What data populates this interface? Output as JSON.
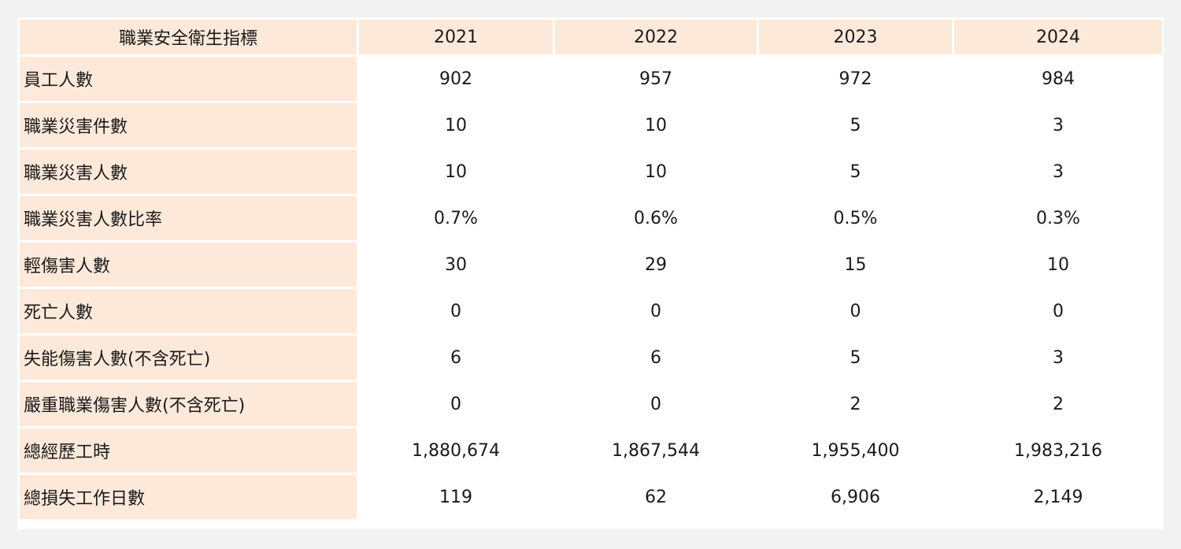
{
  "table": {
    "headers": [
      "職業安全衛生指標",
      "2021",
      "2022",
      "2023",
      "2024"
    ],
    "rows": [
      {
        "label": "員工人數",
        "values": [
          "902",
          "957",
          "972",
          "984"
        ]
      },
      {
        "label": "職業災害件數",
        "values": [
          "10",
          "10",
          "5",
          "3"
        ]
      },
      {
        "label": "職業災害人數",
        "values": [
          "10",
          "10",
          "5",
          "3"
        ]
      },
      {
        "label": "職業災害人數比率",
        "values": [
          "0.7%",
          "0.6%",
          "0.5%",
          "0.3%"
        ]
      },
      {
        "label": "輕傷害人數",
        "values": [
          "30",
          "29",
          "15",
          "10"
        ]
      },
      {
        "label": "死亡人數",
        "values": [
          "0",
          "0",
          "0",
          "0"
        ]
      },
      {
        "label": "失能傷害人數(不含死亡)",
        "values": [
          "6",
          "6",
          "5",
          "3"
        ]
      },
      {
        "label": "嚴重職業傷害人數(不含死亡)",
        "values": [
          "0",
          "0",
          "2",
          "2"
        ]
      },
      {
        "label": "總經歷工時",
        "values": [
          "1,880,674",
          "1,867,544",
          "1,955,400",
          "1,983,216"
        ]
      },
      {
        "label": "總損失工作日數",
        "values": [
          "119",
          "62",
          "6,906",
          "2,149"
        ]
      }
    ]
  },
  "colors": {
    "header_bg": "#fde9da",
    "label_bg": "#fde9da",
    "cell_bg": "#ffffff",
    "page_bg": "#f2f2f2"
  }
}
